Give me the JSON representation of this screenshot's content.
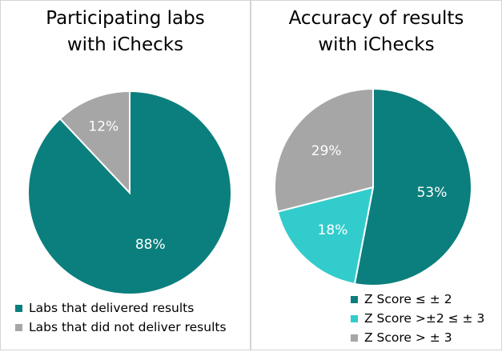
{
  "colors": {
    "teal_dark": "#0b7f7d",
    "teal_light": "#33cccc",
    "gray": "#a6a6a6"
  },
  "chart_data": [
    {
      "type": "pie",
      "title_lines": [
        "Participating labs",
        "with iChecks"
      ],
      "slices": [
        {
          "label": "Labs that delivered results",
          "value": 88,
          "display": "88%",
          "color": "#0b7f7d"
        },
        {
          "label": "Labs that did not deliver results",
          "value": 12,
          "display": "12%",
          "color": "#a6a6a6"
        }
      ],
      "legend_position": "bottom-left"
    },
    {
      "type": "pie",
      "title_lines": [
        "Accuracy of results",
        "with iChecks"
      ],
      "slices": [
        {
          "label": "Z Score ≤ ± 2",
          "value": 53,
          "display": "53%",
          "color": "#0b7f7d"
        },
        {
          "label": "Z Score >±2 ≤ ± 3",
          "value": 18,
          "display": "18%",
          "color": "#33cccc"
        },
        {
          "label": "Z Score > ± 3",
          "value": 29,
          "display": "29%",
          "color": "#a6a6a6"
        }
      ],
      "legend_position": "bottom-right"
    }
  ]
}
